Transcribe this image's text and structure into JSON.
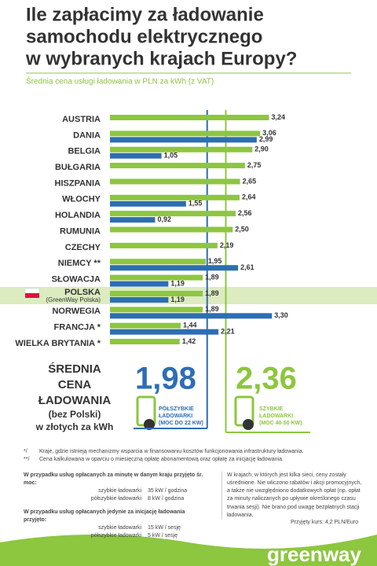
{
  "header": {
    "title_lines": [
      "Ile zapłacimy za ładowanie",
      "samochodu elektrycznego",
      "w wybranych krajach Europy?"
    ],
    "subtitle": "Średnia cena usługi ładowania w PLN za kWh (z VAT)"
  },
  "chart_data": {
    "type": "bar",
    "orientation": "horizontal",
    "categories": [
      "AUSTRIA",
      "DANIA",
      "BELGIA",
      "BUŁGARIA",
      "HISZPANIA",
      "WŁOCHY",
      "HOLANDIA",
      "RUMUNIA",
      "CZECHY",
      "NIEMCY **",
      "SŁOWACJA",
      "POLSKA",
      "NORWEGIA",
      "FRANCJA *",
      "WIELKA BRYTANIA *"
    ],
    "highlight_index": 11,
    "highlight_note": "(GreenWay Polska)",
    "series": [
      {
        "name": "SZYBKIE ŁADOWARKI",
        "power": "(MOC 40-50 KW)",
        "color": "#8dc63f",
        "values": [
          3.24,
          3.06,
          2.9,
          2.75,
          2.65,
          2.64,
          2.56,
          2.5,
          2.19,
          1.95,
          1.89,
          1.89,
          1.89,
          1.44,
          1.42
        ],
        "value_labels": [
          "3,24",
          "3,06",
          "2,90",
          "2,75",
          "2,65",
          "2,64",
          "2,56",
          "2,50",
          "2,19",
          "1,95",
          "1,89",
          "1,89",
          "1,89",
          "1,44",
          "1,42"
        ],
        "average": 2.36,
        "average_label": "2,36"
      },
      {
        "name": "PÓŁSZYBKIE ŁADOWARKI",
        "power": "(MOC DO 22 KW)",
        "color": "#2e6db4",
        "values": [
          null,
          2.99,
          1.05,
          null,
          null,
          1.55,
          0.92,
          null,
          null,
          2.61,
          1.19,
          1.19,
          3.3,
          2.21,
          null
        ],
        "value_labels": [
          null,
          "2,99",
          "1,05",
          null,
          null,
          "1,55",
          "0,92",
          null,
          null,
          "2,61",
          "1,19",
          "1,19",
          "3,30",
          "2,21",
          null
        ],
        "average": 1.98,
        "average_label": "1,98"
      }
    ],
    "average_heading": [
      "ŚREDNIA",
      "CENA",
      "ŁADOWANIA"
    ],
    "average_note": [
      "(bez Polski)",
      "w złotych za kWh"
    ]
  },
  "notes": {
    "footnotes": [
      {
        "mark": "*/",
        "text": "Kraje, gdzie istnieją mechanizmy wsparcia  w finansowaniu kosztów funkcjonowania infrastruktury ładowania."
      },
      {
        "mark": "**/",
        "text": "Cena kalkulowana w oparciu o miesięczną opłatę abonamentową oraz opłatę za inicjację ładowania."
      }
    ],
    "assumptions": [
      {
        "heading": "W przypadku usług opłacanych za minutę w danym kraju przyjęto śr. moc:",
        "rows": [
          [
            "szybkie ładowarki",
            "35  kW / godzina"
          ],
          [
            "półszybkie ładowarki",
            "8 kW / godzina"
          ]
        ]
      },
      {
        "heading": "W przypadku usług opłacanych jedynie za inicjację ładowania przyjęto:",
        "rows": [
          [
            "szybkie ładowarki",
            "15 kW / sesję"
          ],
          [
            "półszybkie ładowarki",
            "5 kW / sesję"
          ]
        ]
      }
    ],
    "method": "W krajach, w których jest kilka sieci, ceny zostały uśrednione. Nie wliczono rabatów i akcji promocyjnych, a także nie uwzględniono dodatkowych opłat (np. opłat za minuty naliczanych po upływie określonego czasu trwania sesji). Nie brano pod uwagę bezpłatnych stacji ładowania.",
    "rate": "Przyjęty kurs: 4,2 PLN/Euro"
  },
  "footer": {
    "logo": "greenway"
  }
}
